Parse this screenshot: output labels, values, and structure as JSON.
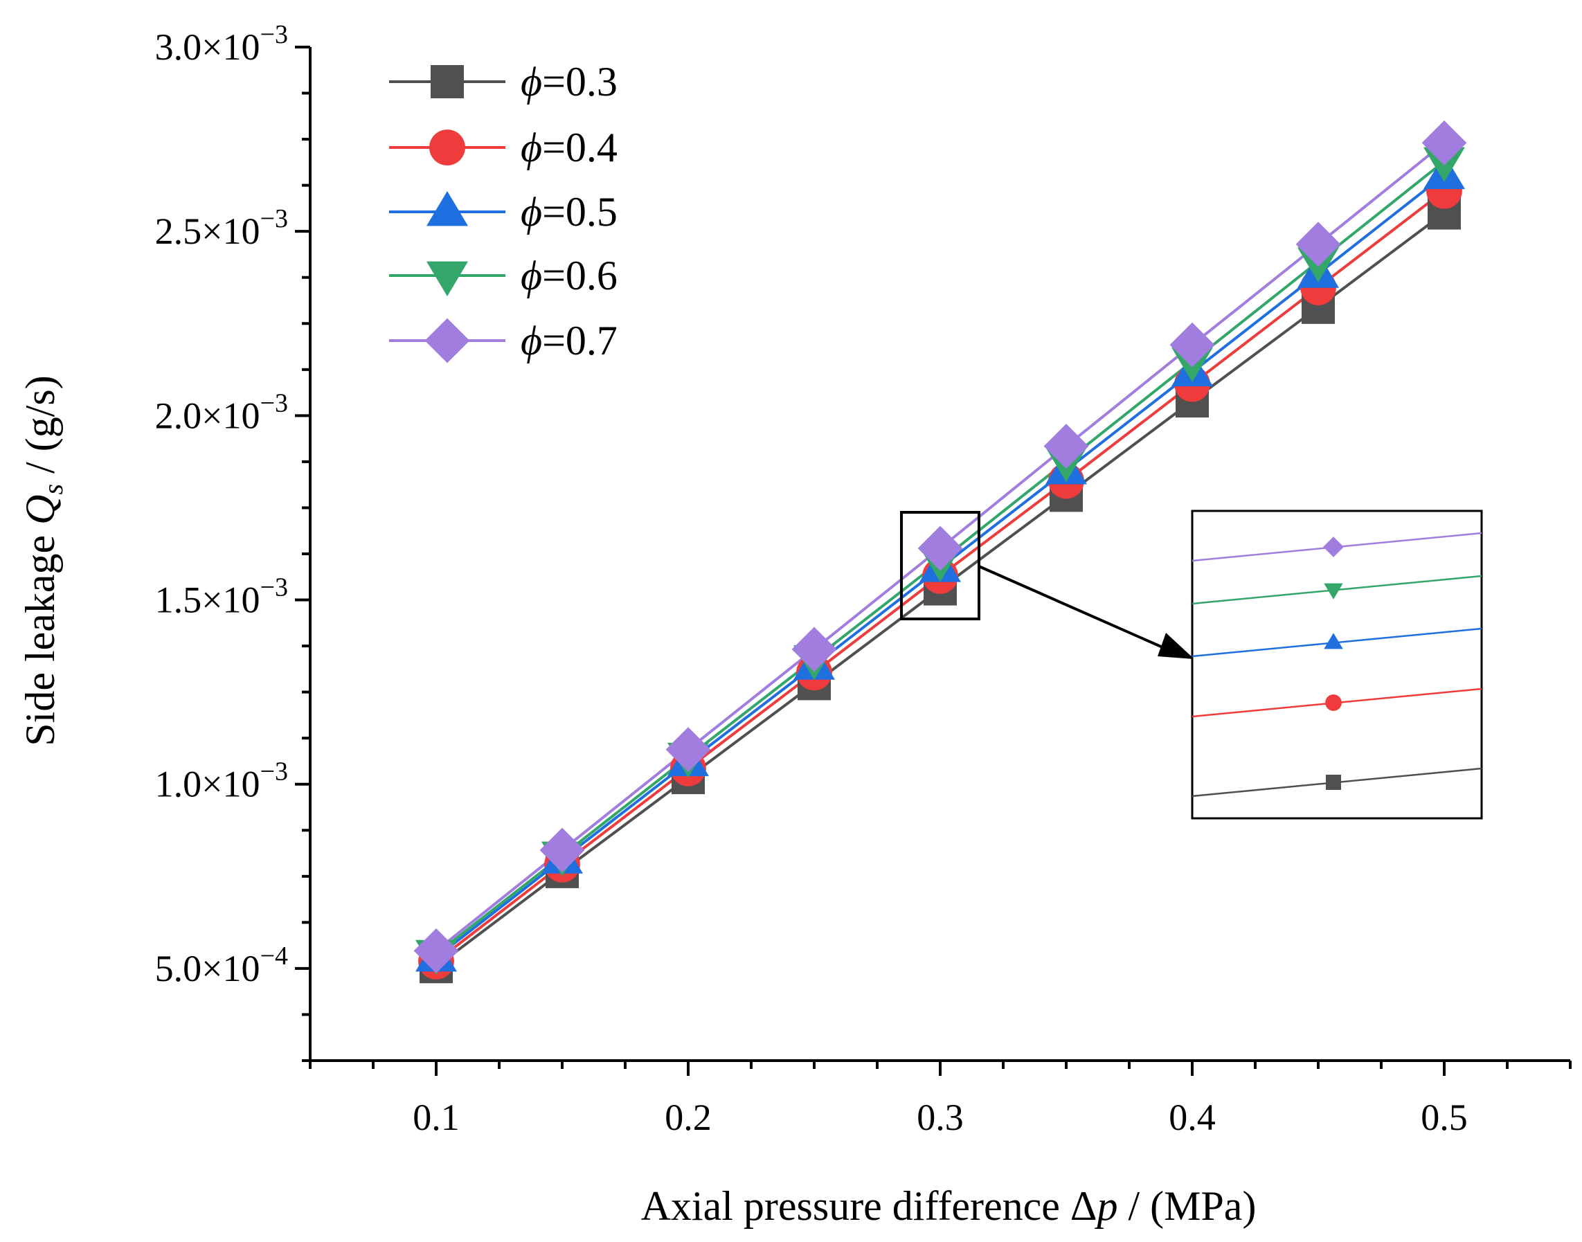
{
  "chart_data": {
    "type": "line",
    "title": "",
    "xlabel": "Axial pressure difference Δp / (MPa)",
    "xlabel_parts": {
      "prefix": "Axial pressure difference Δ",
      "var": "p",
      "suffix": " / (MPa)"
    },
    "ylabel": "Side leakage Q_s / (g/s)",
    "ylabel_parts": {
      "prefix": "Side leakage ",
      "var": "Q",
      "sub": "s",
      "suffix": " / (g/s)"
    },
    "xlim": [
      0.05,
      0.55
    ],
    "ylim": [
      0.00025,
      0.003
    ],
    "x": [
      0.1,
      0.15,
      0.2,
      0.25,
      0.3,
      0.35,
      0.4,
      0.45,
      0.5
    ],
    "x_ticks": [
      0.1,
      0.2,
      0.3,
      0.4,
      0.5
    ],
    "x_tick_labels": [
      "0.1",
      "0.2",
      "0.3",
      "0.4",
      "0.5"
    ],
    "y_ticks": [
      0.0005,
      0.001,
      0.0015,
      0.002,
      0.0025,
      0.003
    ],
    "y_tick_labels": [
      {
        "mantissa": "5.0×10",
        "exp": "−4"
      },
      {
        "mantissa": "1.0×10",
        "exp": "−3"
      },
      {
        "mantissa": "1.5×10",
        "exp": "−3"
      },
      {
        "mantissa": "2.0×10",
        "exp": "−3"
      },
      {
        "mantissa": "2.5×10",
        "exp": "−3"
      },
      {
        "mantissa": "3.0×10",
        "exp": "−3"
      }
    ],
    "legend_position": "top-left",
    "series": [
      {
        "name": "ϕ=0.3",
        "symbol": "ϕ",
        "value": "=0.3",
        "marker": "square",
        "color": "#505050",
        "values": [
          0.000505,
          0.000763,
          0.001018,
          0.001273,
          0.00153,
          0.001784,
          0.00204,
          0.002294,
          0.00255
        ]
      },
      {
        "name": "ϕ=0.4",
        "symbol": "ϕ",
        "value": "=0.4",
        "marker": "circle",
        "color": "#ef3b3b",
        "values": [
          0.000519,
          0.000782,
          0.001043,
          0.001303,
          0.001565,
          0.001823,
          0.002086,
          0.002348,
          0.00261
        ]
      },
      {
        "name": "ϕ=0.5",
        "symbol": "ϕ",
        "value": "=0.5",
        "marker": "triangle-up",
        "color": "#1f6fe0",
        "values": [
          0.00053,
          0.000796,
          0.00106,
          0.001322,
          0.001587,
          0.001852,
          0.002118,
          0.002385,
          0.002653
        ]
      },
      {
        "name": "ϕ=0.6",
        "symbol": "ϕ",
        "value": "=0.6",
        "marker": "triangle-down",
        "color": "#33a66a",
        "values": [
          0.000539,
          0.000806,
          0.001074,
          0.001339,
          0.001605,
          0.001876,
          0.002147,
          0.002418,
          0.00269
        ]
      },
      {
        "name": "ϕ=0.7",
        "symbol": "ϕ",
        "value": "=0.7",
        "marker": "diamond",
        "color": "#a27de0",
        "values": [
          0.000548,
          0.000821,
          0.001094,
          0.001366,
          0.00164,
          0.001917,
          0.002192,
          0.002465,
          0.00274
        ]
      }
    ],
    "inset": {
      "description_center_x": 0.3,
      "zoomed_series_order": [
        "ϕ=0.7",
        "ϕ=0.6",
        "ϕ=0.5",
        "ϕ=0.4",
        "ϕ=0.3"
      ]
    }
  }
}
